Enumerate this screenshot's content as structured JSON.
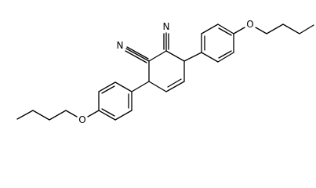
{
  "atom_labels": [
    "N",
    "N",
    "O",
    "O"
  ]
}
